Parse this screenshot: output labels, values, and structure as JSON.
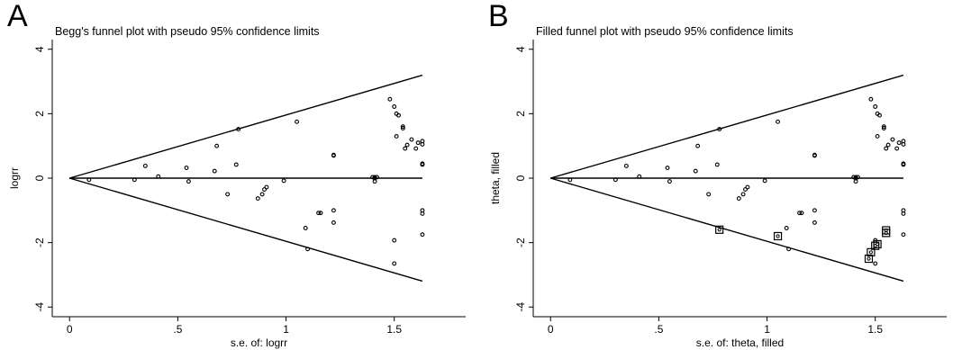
{
  "chart_data": [
    {
      "type": "scatter",
      "panel_letter": "A",
      "title": "Begg's funnel plot with pseudo 95% confidence limits",
      "xlabel": "s.e. of: logrr",
      "ylabel": "logrr",
      "xticks": [
        "0",
        ".5",
        "1",
        "1.5"
      ],
      "yticks": [
        "-4",
        "-2",
        "0",
        "2",
        "4"
      ],
      "xlim": [
        -0.08,
        1.83
      ],
      "ylim": [
        -4.3,
        4.3
      ],
      "pooled_estimate": 0,
      "limit_max_se": 1.63,
      "points": [
        [
          0.09,
          -0.05
        ],
        [
          0.3,
          -0.05
        ],
        [
          0.35,
          0.38
        ],
        [
          0.41,
          0.05
        ],
        [
          0.54,
          0.32
        ],
        [
          0.55,
          -0.1
        ],
        [
          0.67,
          0.22
        ],
        [
          0.68,
          1.0
        ],
        [
          0.73,
          -0.5
        ],
        [
          0.77,
          0.42
        ],
        [
          0.78,
          1.52
        ],
        [
          0.87,
          -0.63
        ],
        [
          0.89,
          -0.5
        ],
        [
          0.9,
          -0.35
        ],
        [
          0.91,
          -0.28
        ],
        [
          0.99,
          -0.08
        ],
        [
          1.05,
          1.75
        ],
        [
          1.09,
          -1.55
        ],
        [
          1.1,
          -2.2
        ],
        [
          1.15,
          -1.08
        ],
        [
          1.16,
          -1.08
        ],
        [
          1.22,
          0.72
        ],
        [
          1.22,
          0.7
        ],
        [
          1.22,
          -1.0
        ],
        [
          1.22,
          -1.38
        ],
        [
          1.4,
          0.03
        ],
        [
          1.41,
          0.03
        ],
        [
          1.41,
          0.0
        ],
        [
          1.42,
          0.03
        ],
        [
          1.41,
          -0.1
        ],
        [
          1.48,
          2.45
        ],
        [
          1.5,
          2.22
        ],
        [
          1.51,
          2.0
        ],
        [
          1.52,
          1.95
        ],
        [
          1.51,
          1.3
        ],
        [
          1.54,
          1.6
        ],
        [
          1.54,
          1.55
        ],
        [
          1.55,
          0.92
        ],
        [
          1.56,
          1.03
        ],
        [
          1.58,
          1.2
        ],
        [
          1.6,
          0.92
        ],
        [
          1.61,
          1.1
        ],
        [
          1.63,
          1.05
        ],
        [
          1.63,
          1.15
        ],
        [
          1.63,
          0.45
        ],
        [
          1.63,
          0.42
        ],
        [
          1.63,
          -1.0
        ],
        [
          1.63,
          -1.1
        ],
        [
          1.63,
          -1.75
        ],
        [
          1.5,
          -1.93
        ],
        [
          1.5,
          -2.65
        ]
      ],
      "filled_points": []
    },
    {
      "type": "scatter",
      "panel_letter": "B",
      "title": "Filled funnel plot with pseudo 95% confidence limits",
      "xlabel": "s.e. of: theta, filled",
      "ylabel": "theta, filled",
      "xticks": [
        "0",
        ".5",
        "1",
        "1.5"
      ],
      "yticks": [
        "-4",
        "-2",
        "0",
        "2",
        "4"
      ],
      "xlim": [
        -0.08,
        1.83
      ],
      "ylim": [
        -4.3,
        4.3
      ],
      "pooled_estimate": 0,
      "limit_max_se": 1.63,
      "points": [
        [
          0.09,
          -0.05
        ],
        [
          0.3,
          -0.05
        ],
        [
          0.35,
          0.38
        ],
        [
          0.41,
          0.05
        ],
        [
          0.54,
          0.32
        ],
        [
          0.55,
          -0.1
        ],
        [
          0.67,
          0.22
        ],
        [
          0.68,
          1.0
        ],
        [
          0.73,
          -0.5
        ],
        [
          0.77,
          0.42
        ],
        [
          0.78,
          1.52
        ],
        [
          0.87,
          -0.63
        ],
        [
          0.89,
          -0.5
        ],
        [
          0.9,
          -0.35
        ],
        [
          0.91,
          -0.28
        ],
        [
          0.99,
          -0.08
        ],
        [
          1.05,
          1.75
        ],
        [
          1.09,
          -1.55
        ],
        [
          1.1,
          -2.2
        ],
        [
          1.15,
          -1.08
        ],
        [
          1.16,
          -1.08
        ],
        [
          1.22,
          0.72
        ],
        [
          1.22,
          0.7
        ],
        [
          1.22,
          -1.0
        ],
        [
          1.22,
          -1.38
        ],
        [
          1.4,
          0.03
        ],
        [
          1.41,
          0.03
        ],
        [
          1.41,
          0.0
        ],
        [
          1.42,
          0.03
        ],
        [
          1.41,
          -0.1
        ],
        [
          1.48,
          2.45
        ],
        [
          1.5,
          2.22
        ],
        [
          1.51,
          2.0
        ],
        [
          1.52,
          1.95
        ],
        [
          1.51,
          1.3
        ],
        [
          1.54,
          1.6
        ],
        [
          1.54,
          1.55
        ],
        [
          1.55,
          0.92
        ],
        [
          1.56,
          1.03
        ],
        [
          1.58,
          1.2
        ],
        [
          1.6,
          0.92
        ],
        [
          1.61,
          1.1
        ],
        [
          1.63,
          1.05
        ],
        [
          1.63,
          1.15
        ],
        [
          1.63,
          0.45
        ],
        [
          1.63,
          0.42
        ],
        [
          1.63,
          -1.0
        ],
        [
          1.63,
          -1.1
        ],
        [
          1.63,
          -1.75
        ],
        [
          1.5,
          -1.93
        ],
        [
          1.5,
          -2.65
        ]
      ],
      "filled_points": [
        [
          0.78,
          -1.6
        ],
        [
          1.05,
          -1.8
        ],
        [
          1.47,
          -2.5
        ],
        [
          1.48,
          -2.3
        ],
        [
          1.5,
          -2.1
        ],
        [
          1.51,
          -2.05
        ],
        [
          1.55,
          -1.7
        ],
        [
          1.55,
          -1.62
        ]
      ]
    }
  ]
}
